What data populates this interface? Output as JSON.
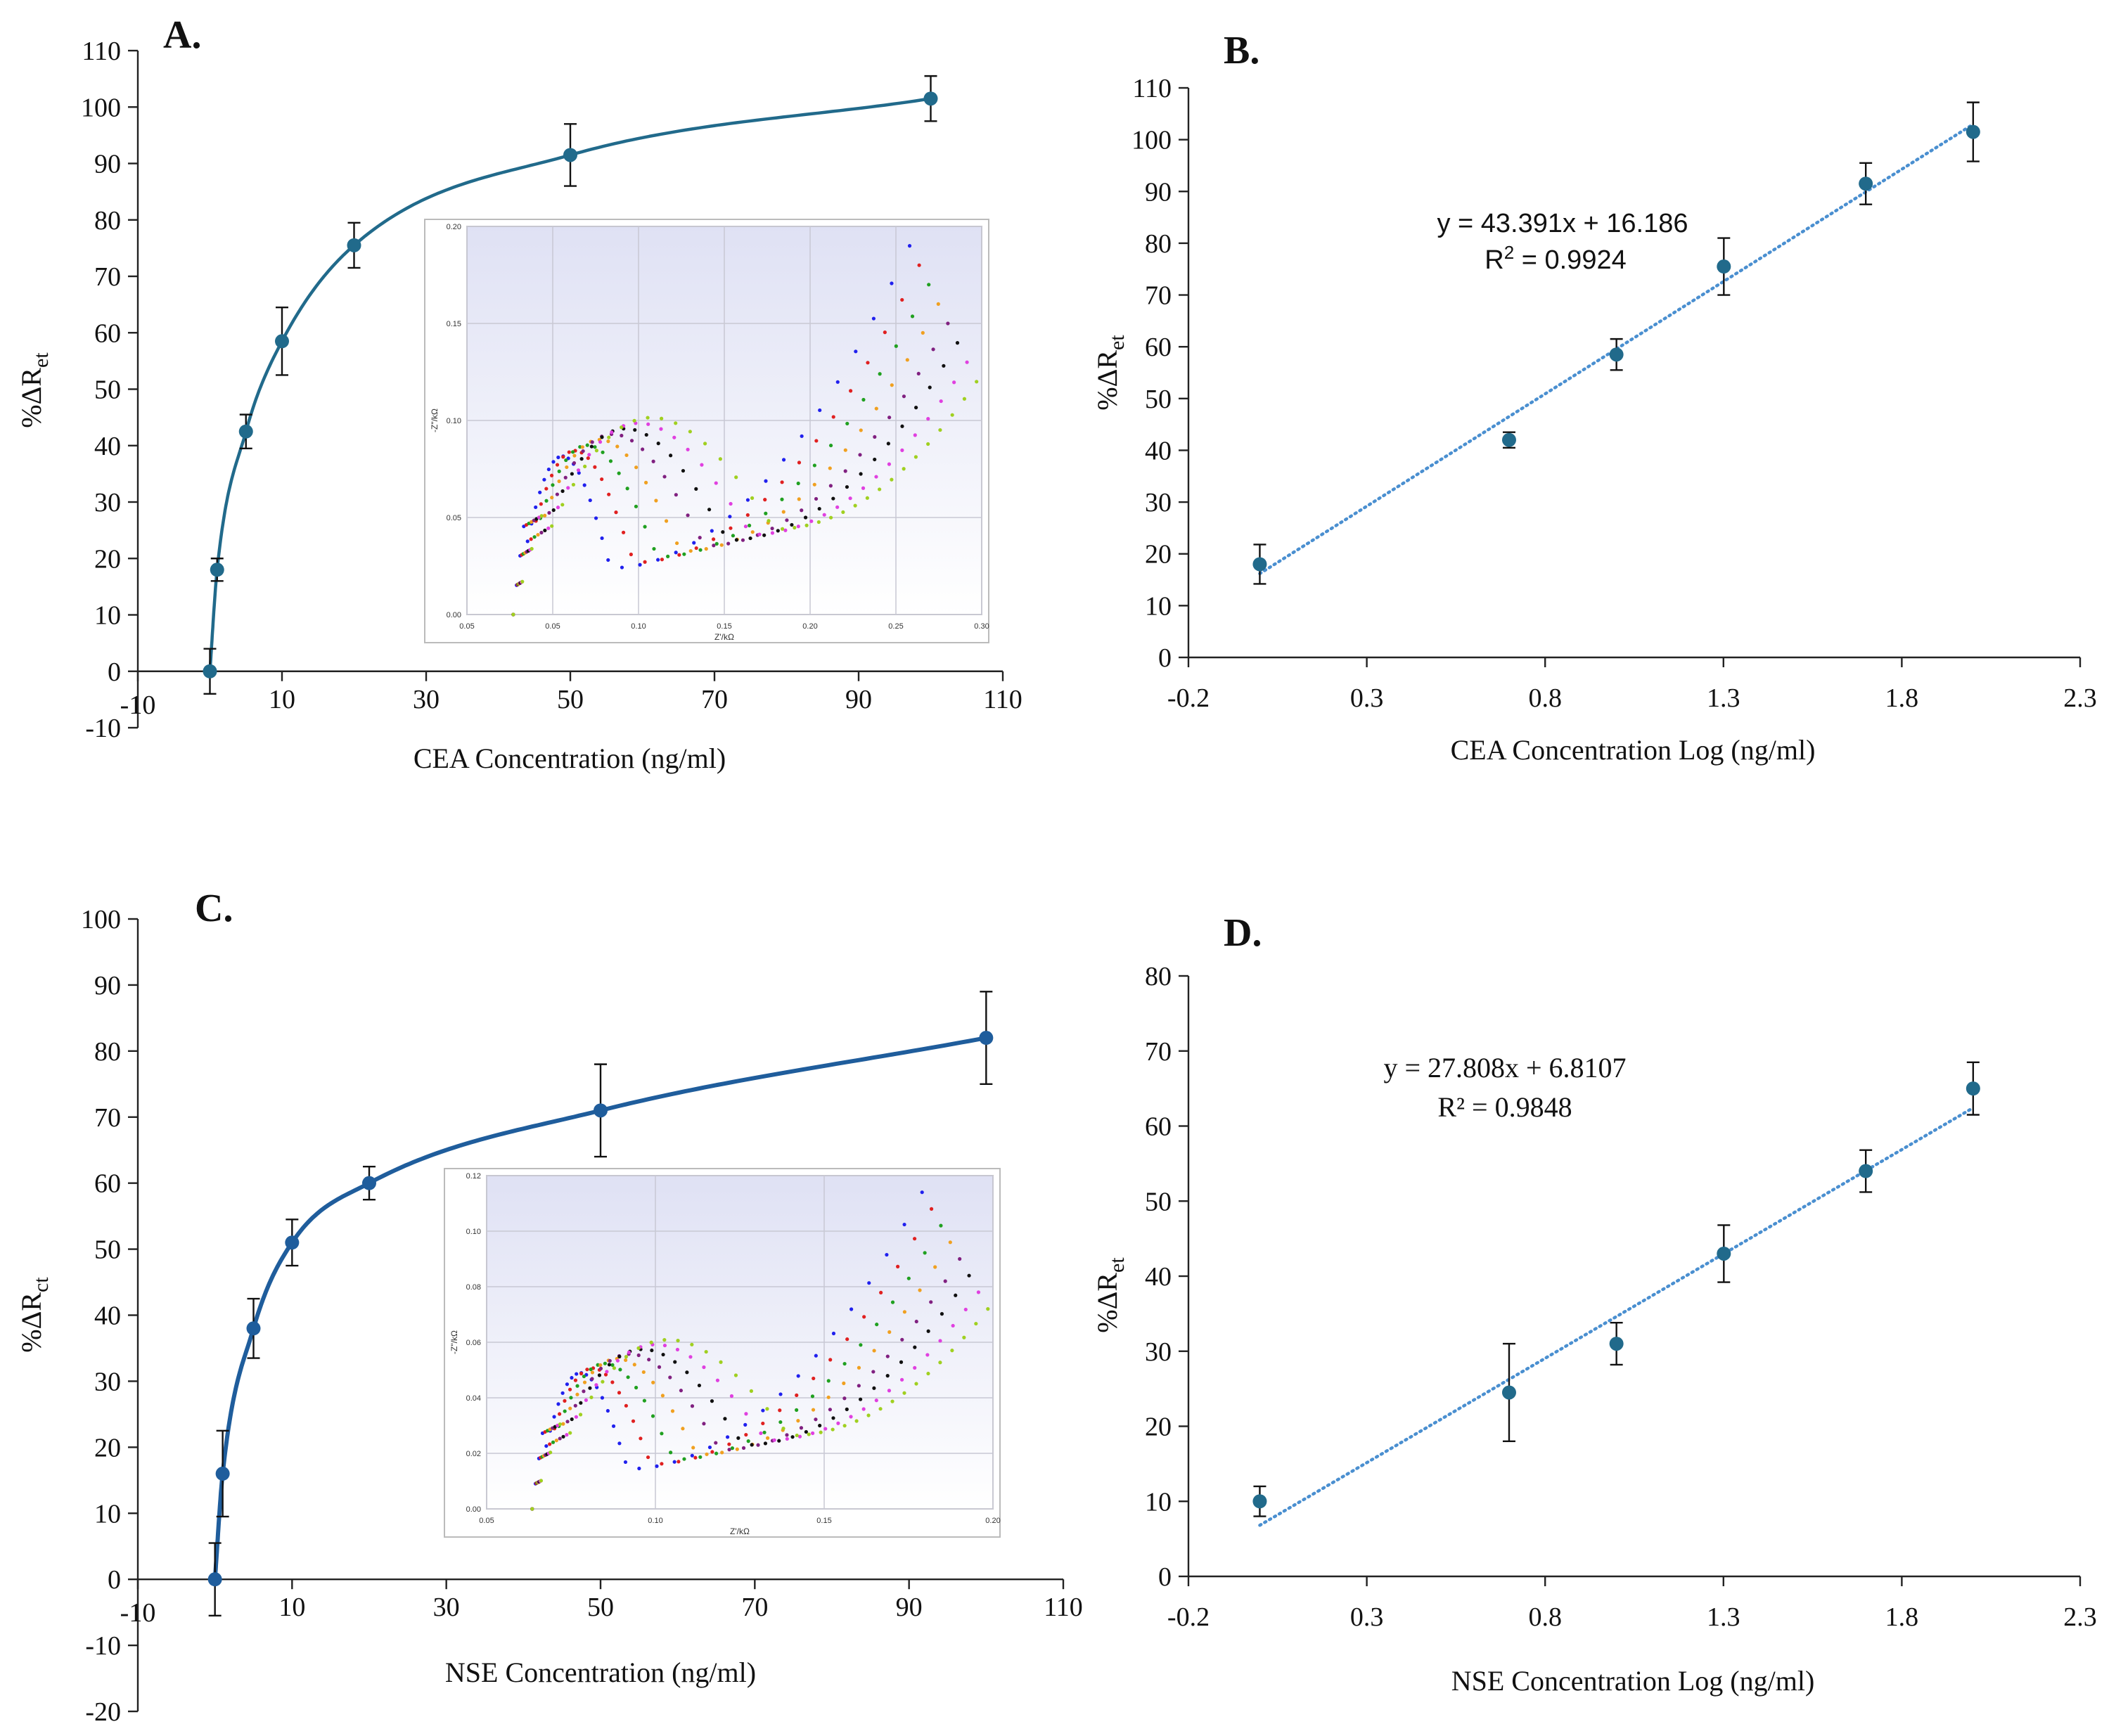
{
  "figure": {
    "panel_labels": [
      "A.",
      "B.",
      "C.",
      "D."
    ]
  },
  "chart_data": [
    {
      "panel": "A.",
      "type": "line",
      "subtype": "scatter-with-smooth-fit",
      "xlabel": "CEA Concentration  (ng/ml)",
      "ylabel": "%ΔR",
      "ylabel_sub": "et",
      "xlim": [
        -10,
        110
      ],
      "ylim": [
        -10,
        110
      ],
      "xticks": [
        -10,
        10,
        30,
        50,
        70,
        90,
        110
      ],
      "yticks": [
        -10,
        0,
        10,
        20,
        30,
        40,
        50,
        60,
        70,
        80,
        90,
        100,
        110
      ],
      "x": [
        0,
        1,
        5,
        10,
        20,
        50,
        100
      ],
      "y": [
        0,
        18,
        42.5,
        58.5,
        75.5,
        91.5,
        101.5
      ],
      "error": [
        4,
        2,
        3,
        6,
        4,
        5.5,
        4
      ],
      "color": "#216A8B",
      "inset": {
        "xticks": [
          "0.05",
          "0.05",
          "0.10",
          "0.15",
          "0.20",
          "0.25",
          "0.30"
        ],
        "yticks": [
          "0.00",
          "0.05",
          "0.10",
          "0.15",
          "0.20"
        ],
        "xlabel": "Z'/kΩ",
        "ylabel": "-Z\"/kΩ",
        "series_colors": [
          "#2020ee",
          "#e02020",
          "#20a020",
          "#f0a020",
          "#802080",
          "#101010",
          "#e040e0",
          "#a0d020"
        ]
      }
    },
    {
      "panel": "B.",
      "type": "scatter",
      "subtype": "scatter-with-linear-trendline",
      "xlabel": "CEA Concentration  Log (ng/ml)",
      "ylabel": "%ΔR",
      "ylabel_sub": "et",
      "xlim": [
        -0.2,
        2.3
      ],
      "ylim": [
        0,
        110
      ],
      "xticks": [
        "-0.2",
        "0.3",
        "0.8",
        "1.3",
        "1.8",
        "2.3"
      ],
      "yticks": [
        0,
        10,
        20,
        30,
        40,
        50,
        60,
        70,
        80,
        90,
        100,
        110
      ],
      "x": [
        0,
        0.699,
        1,
        1.301,
        1.699,
        2
      ],
      "y": [
        18,
        42,
        58.5,
        75.5,
        91.5,
        101.5
      ],
      "error": [
        3.8,
        1.5,
        3,
        5.5,
        4,
        5.7
      ],
      "trendline": {
        "slope": 43.391,
        "intercept": 16.186
      },
      "equation": "y = 43.391x + 16.186",
      "r2_label": "R",
      "r2_value": " = 0.9924",
      "color": "#216A8B",
      "trend_color": "#4A8FD0"
    },
    {
      "panel": "C.",
      "type": "line",
      "subtype": "scatter-with-smooth-fit",
      "xlabel": "NSE Concentration (ng/ml)",
      "ylabel": "%ΔR",
      "ylabel_sub": "ct",
      "xlim": [
        -10,
        110
      ],
      "ylim": [
        -20,
        100
      ],
      "xticks": [
        -10,
        10,
        30,
        50,
        70,
        90,
        110
      ],
      "yticks": [
        -20,
        -10,
        0,
        10,
        20,
        30,
        40,
        50,
        60,
        70,
        80,
        90,
        100
      ],
      "x": [
        0,
        1,
        5,
        10,
        20,
        50,
        100
      ],
      "y": [
        0,
        16,
        38,
        51,
        60,
        71,
        82
      ],
      "error": [
        5.5,
        6.5,
        4.5,
        3.5,
        2.5,
        7,
        7
      ],
      "color": "#1F5D9C",
      "inset": {
        "xticks": [
          "0.05",
          "0.10",
          "0.15",
          "0.20"
        ],
        "yticks": [
          "0.00",
          "0.02",
          "0.04",
          "0.06",
          "0.08",
          "0.10",
          "0.12"
        ],
        "xlabel": "Z'/kΩ",
        "ylabel": "-Z\"/kΩ",
        "series_colors": [
          "#2020ee",
          "#e02020",
          "#20a020",
          "#f0a020",
          "#802080",
          "#101010",
          "#e040e0",
          "#a0d020"
        ]
      }
    },
    {
      "panel": "D.",
      "type": "scatter",
      "subtype": "scatter-with-linear-trendline",
      "xlabel": "NSE Concentration Log (ng/ml)",
      "ylabel": "%ΔR",
      "ylabel_sub": "et",
      "xlim": [
        -0.2,
        2.3
      ],
      "ylim": [
        0,
        80
      ],
      "xticks": [
        "-0.2",
        "0.3",
        "0.8",
        "1.3",
        "1.8",
        "2.3"
      ],
      "yticks": [
        0,
        10,
        20,
        30,
        40,
        50,
        60,
        70,
        80
      ],
      "x": [
        0,
        0.699,
        1,
        1.301,
        1.699,
        2
      ],
      "y": [
        10,
        24.5,
        31,
        43,
        54,
        65
      ],
      "error": [
        2,
        6.5,
        2.8,
        3.8,
        2.8,
        3.5
      ],
      "trendline": {
        "slope": 27.808,
        "intercept": 6.8107
      },
      "equation": "y = 27.808x + 6.8107",
      "r2_label": "R² = 0.9848",
      "color": "#216A8B",
      "trend_color": "#4A8FD0"
    }
  ]
}
